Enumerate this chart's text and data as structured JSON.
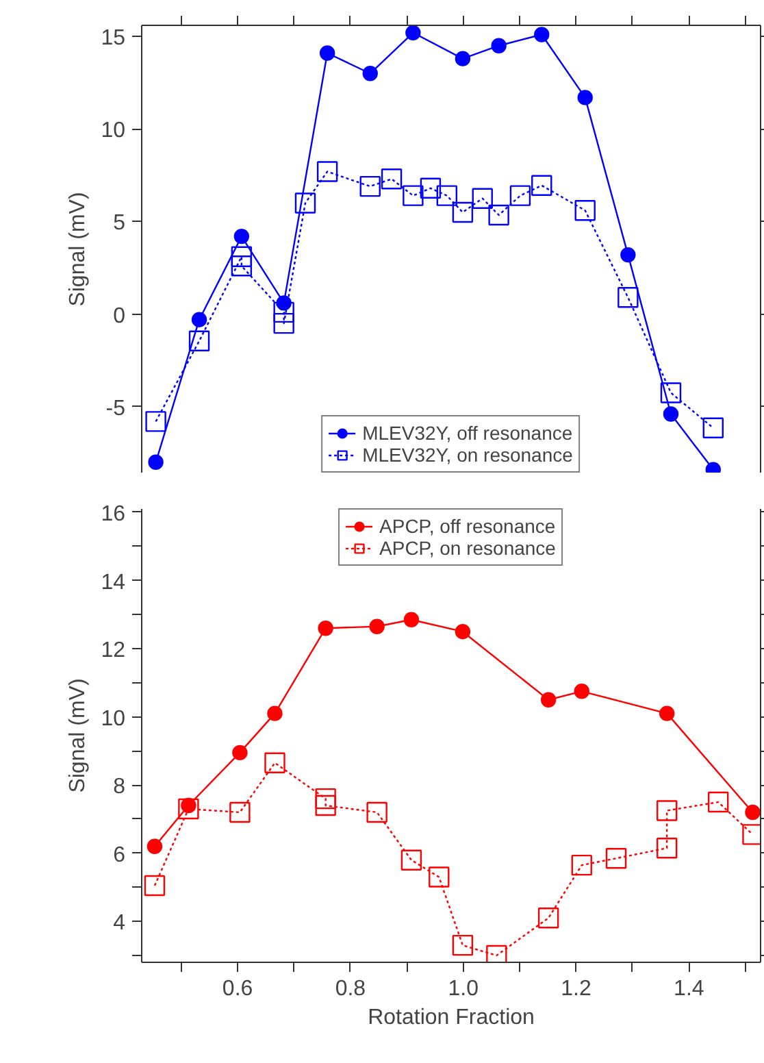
{
  "chart_data": [
    {
      "type": "line",
      "ylabel": "Signal (mV)",
      "xlim": [
        0.43,
        1.527
      ],
      "ylim": [
        -8.6,
        15.6
      ],
      "xticks": [
        {
          "value": 0.5,
          "label": null
        },
        {
          "value": 0.6,
          "label": null
        },
        {
          "value": 0.7,
          "label": null
        },
        {
          "value": 0.8,
          "label": null
        },
        {
          "value": 0.9,
          "label": null
        },
        {
          "value": 1.0,
          "label": null
        },
        {
          "value": 1.1,
          "label": null
        },
        {
          "value": 1.2,
          "label": null
        },
        {
          "value": 1.3,
          "label": null
        },
        {
          "value": 1.4,
          "label": null
        },
        {
          "value": 1.5,
          "label": null
        }
      ],
      "yticks": [
        -5,
        0,
        5,
        10,
        15
      ],
      "tick_labels": "y",
      "grid": false,
      "legend": "bottom",
      "series": [
        {
          "name": "MLEV32Y, off resonance",
          "color": "#0000ff",
          "marker": "circle",
          "line_style": "solid",
          "x": [
            0.455,
            0.532,
            0.607,
            0.682,
            0.759,
            0.835,
            0.911,
            0.999,
            1.063,
            1.139,
            1.216,
            1.292,
            1.368,
            1.443
          ],
          "values": [
            -8.0,
            -0.3,
            4.2,
            0.6,
            14.1,
            13.0,
            15.2,
            13.8,
            14.5,
            15.1,
            11.7,
            3.2,
            -5.4,
            -8.4
          ]
        },
        {
          "name": "MLEV32Y, on resonance",
          "color": "#0000ff",
          "marker": "square",
          "line_style": "dashed",
          "x": [
            0.455,
            0.532,
            0.607,
            0.607,
            0.682,
            0.682,
            0.72,
            0.759,
            0.835,
            0.873,
            0.911,
            0.942,
            0.971,
            0.999,
            1.034,
            1.063,
            1.101,
            1.139,
            1.216,
            1.292,
            1.368,
            1.443
          ],
          "values": [
            -5.8,
            -1.45,
            3.1,
            2.6,
            0.1,
            -0.5,
            6.0,
            7.7,
            6.9,
            7.3,
            6.4,
            6.8,
            6.4,
            5.5,
            6.25,
            5.35,
            6.4,
            6.95,
            5.6,
            0.9,
            -4.25,
            -6.15
          ]
        }
      ]
    },
    {
      "type": "line",
      "xlabel": "Rotation Fraction",
      "ylabel": "Signal (mV)",
      "xlim": [
        0.43,
        1.527
      ],
      "ylim": [
        2.8,
        16.1
      ],
      "xticks": [
        {
          "value": 0.5,
          "label": null
        },
        0.6,
        {
          "value": 0.7,
          "label": null
        },
        0.8,
        {
          "value": 0.9,
          "label": null
        },
        {
          "value": 1.0,
          "label": "1.0"
        },
        {
          "value": 1.1,
          "label": null
        },
        1.2,
        {
          "value": 1.3,
          "label": null
        },
        1.4,
        {
          "value": 1.5,
          "label": null
        }
      ],
      "yticks": [
        {
          "value": 3,
          "label": null
        },
        4,
        {
          "value": 5,
          "label": null
        },
        6,
        {
          "value": 7,
          "label": null
        },
        8,
        {
          "value": 9,
          "label": null
        },
        10,
        {
          "value": 11,
          "label": null
        },
        12,
        {
          "value": 13,
          "label": null
        },
        14,
        {
          "value": 15,
          "label": null
        },
        16
      ],
      "grid": false,
      "legend": "top",
      "series": [
        {
          "name": "APCP, off resonance",
          "color": "#ff0000",
          "marker": "circle",
          "line_style": "solid",
          "x": [
            0.453,
            0.513,
            0.604,
            0.666,
            0.756,
            0.847,
            0.908,
            0.999,
            1.151,
            1.21,
            1.361,
            1.513
          ],
          "values": [
            6.2,
            7.4,
            8.95,
            10.1,
            12.6,
            12.65,
            12.85,
            12.5,
            10.5,
            10.75,
            10.1,
            7.2
          ]
        },
        {
          "name": "APCP, on resonance",
          "color": "#ff0000",
          "marker": "square",
          "line_style": "dashed",
          "x": [
            0.453,
            0.513,
            0.604,
            0.666,
            0.756,
            0.756,
            0.847,
            0.908,
            0.957,
            0.999,
            1.059,
            1.151,
            1.21,
            1.271,
            1.361,
            1.361,
            1.452,
            1.513
          ],
          "values": [
            5.05,
            7.3,
            7.2,
            8.65,
            7.6,
            7.4,
            7.2,
            5.8,
            5.3,
            3.3,
            3.0,
            4.1,
            5.65,
            5.85,
            6.15,
            7.25,
            7.5,
            6.55
          ]
        }
      ]
    }
  ]
}
